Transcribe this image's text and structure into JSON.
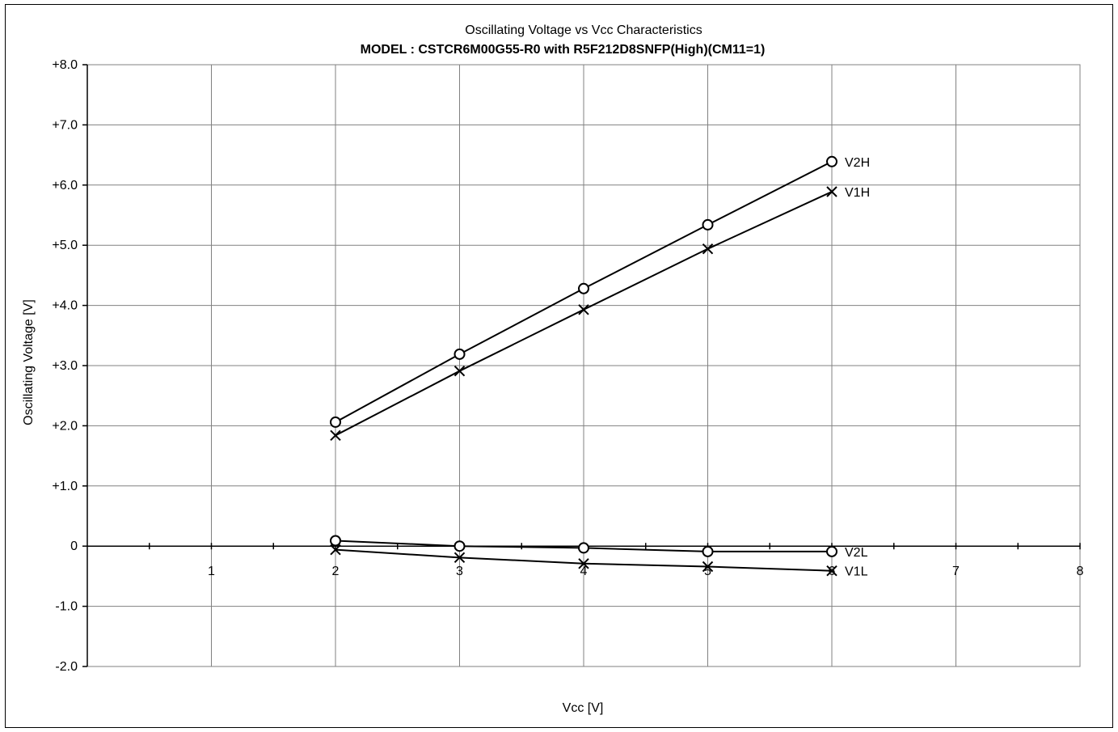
{
  "chart_data": {
    "type": "line",
    "title": "Oscillating Voltage vs Vcc Characteristics",
    "subtitle": "MODEL : CSTCR6M00G55-R0 with R5F212D8SNFP(High)(CM11=1)",
    "xlabel": "Vcc [V]",
    "ylabel": "Oscillating Voltage [V]",
    "xlim": [
      0,
      8
    ],
    "ylim": [
      -2.0,
      8.0
    ],
    "x_ticks": [
      "1",
      "2",
      "3",
      "4",
      "5",
      "6",
      "7",
      "8"
    ],
    "y_ticks": [
      "+8.0",
      "+7.0",
      "+6.0",
      "+5.0",
      "+4.0",
      "+3.0",
      "+2.0",
      "+1.0",
      "0",
      "-1.0",
      "-2.0"
    ],
    "grid": true,
    "legend": "inline labels at line ends",
    "series": [
      {
        "name": "V2H",
        "marker": "circle",
        "x": [
          2,
          3,
          4,
          5,
          6
        ],
        "y": [
          2.06,
          3.19,
          4.28,
          5.34,
          6.39
        ]
      },
      {
        "name": "V1H",
        "marker": "x",
        "x": [
          2,
          3,
          4,
          5,
          6
        ],
        "y": [
          1.84,
          2.91,
          3.93,
          4.94,
          5.89
        ]
      },
      {
        "name": "V2L",
        "marker": "circle",
        "x": [
          2,
          3,
          4,
          5,
          6
        ],
        "y": [
          0.09,
          0.0,
          -0.03,
          -0.09,
          -0.09
        ]
      },
      {
        "name": "V1L",
        "marker": "x",
        "x": [
          2,
          3,
          4,
          5,
          6
        ],
        "y": [
          -0.06,
          -0.19,
          -0.29,
          -0.34,
          -0.41
        ]
      }
    ],
    "colors": {
      "line": "#000000",
      "grid": "#808080",
      "background": "#ffffff"
    }
  }
}
